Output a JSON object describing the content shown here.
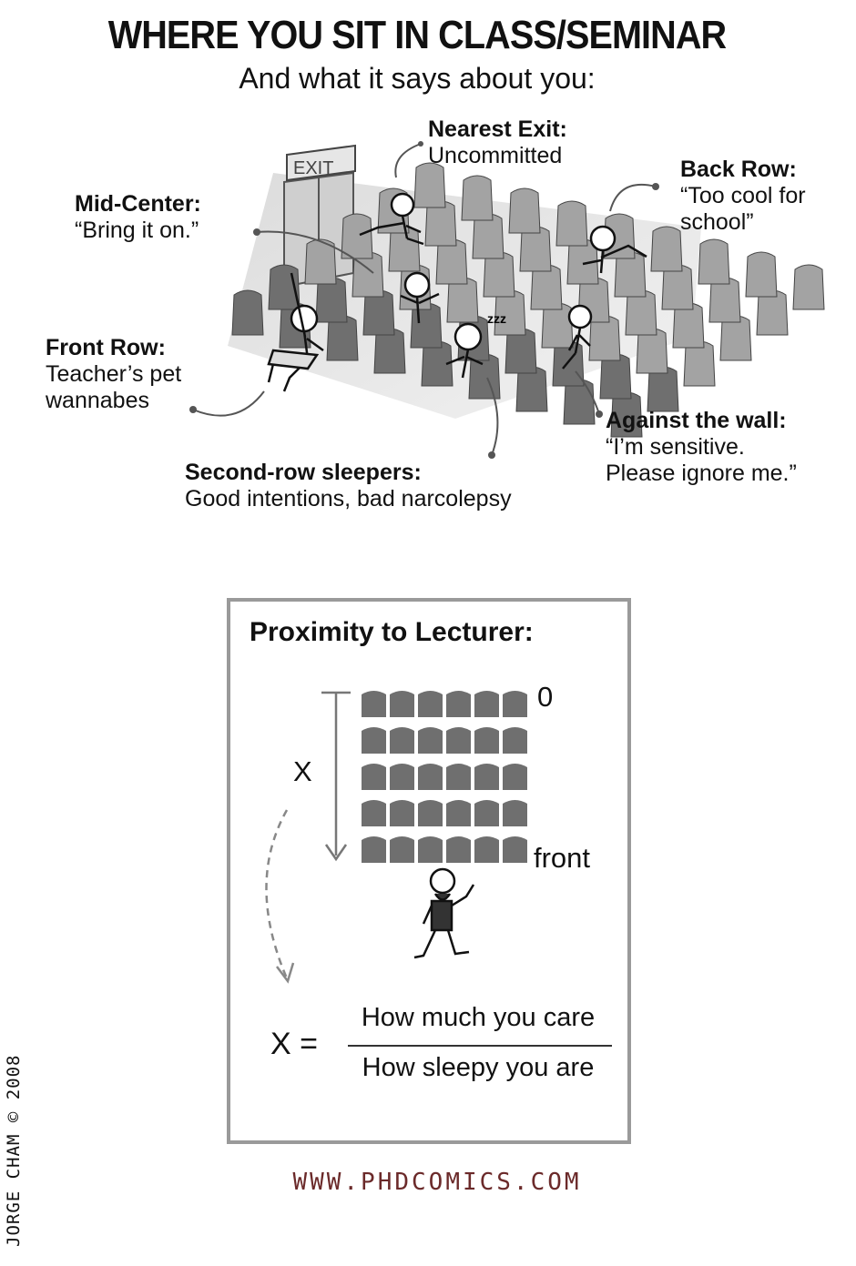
{
  "title": "WHERE YOU SIT IN CLASS/SEMINAR",
  "subtitle": "And what it says about you:",
  "exit_sign": "EXIT",
  "sleep_text": "zzz",
  "labels": {
    "nearest_exit": {
      "heading": "Nearest Exit:",
      "text": "Uncommitted"
    },
    "back_row": {
      "heading": "Back Row:",
      "line1": "“Too cool for",
      "line2": "school”"
    },
    "mid_center": {
      "heading": "Mid-Center:",
      "text": "“Bring it on.”"
    },
    "front_row": {
      "heading": "Front Row:",
      "line1": "Teacher’s pet",
      "line2": "wannabes"
    },
    "against_wall": {
      "heading": "Against the wall:",
      "line1": "“I’m sensitive.",
      "line2": "Please ignore me.”"
    },
    "second_row": {
      "heading": "Second-row sleepers:",
      "text": "Good intentions, bad narcolepsy"
    }
  },
  "proximity": {
    "title": "Proximity to Lecturer:",
    "zero": "0",
    "front": "front",
    "x_label": "X",
    "equation_lhs": "X =",
    "numerator": "How much you care",
    "denominator": "How sleepy you are"
  },
  "url": "WWW.PHDCOMICS.COM",
  "copyright": "JORGE CHAM © 2008",
  "colors": {
    "seat": "#6f6f6f",
    "seat_light": "#a3a3a3",
    "box_border": "#9a9a9a",
    "url": "#6b2a2a"
  }
}
